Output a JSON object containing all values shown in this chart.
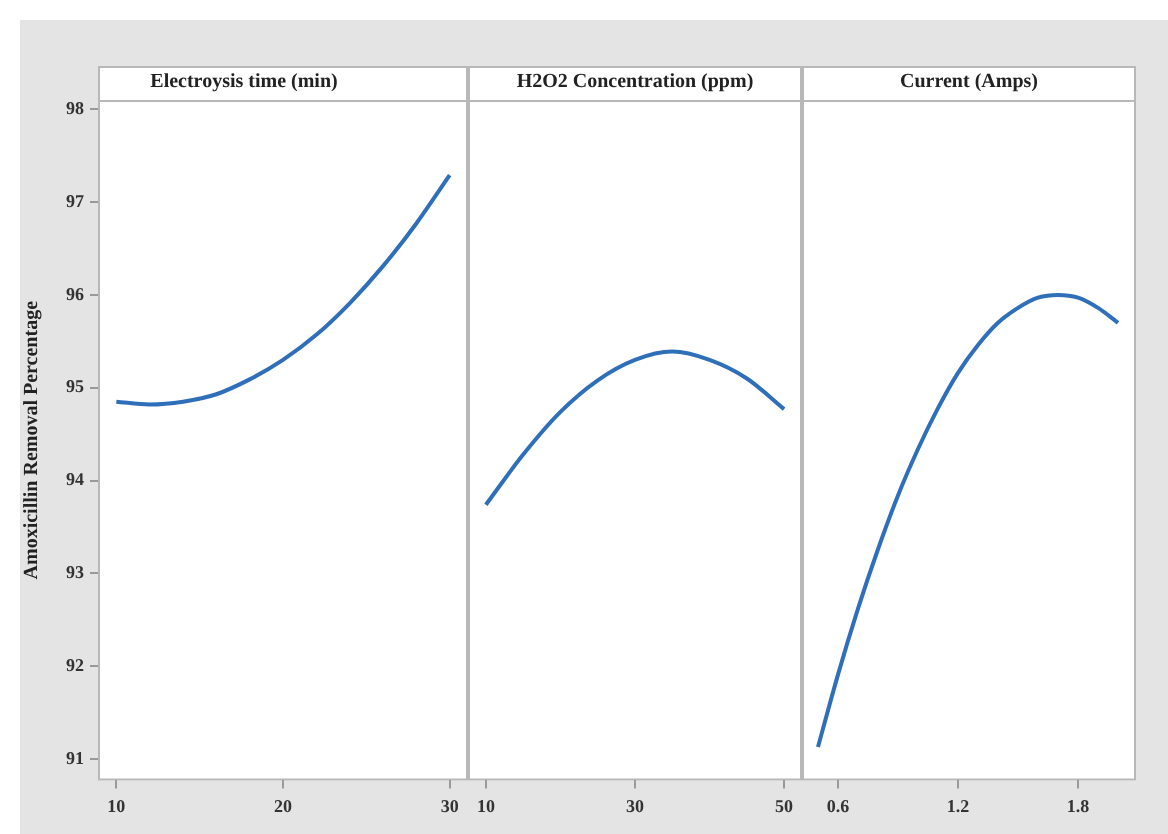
{
  "chart_data": [
    {
      "type": "line",
      "title": "Electroysis time (min)",
      "ylabel": "Amoxicillin Removal Percentage",
      "color": "#2f6fba",
      "x": [
        10,
        12,
        14,
        16,
        18,
        20,
        22,
        24,
        26,
        28,
        30
      ],
      "values": [
        94.85,
        94.82,
        94.85,
        94.93,
        95.09,
        95.3,
        95.57,
        95.91,
        96.31,
        96.77,
        97.29
      ],
      "xlim": [
        8.9,
        31.1
      ],
      "xticks": [
        10,
        20,
        30
      ],
      "ylim": [
        90.77,
        98.1
      ],
      "yticks": [
        91,
        92,
        93,
        94,
        95,
        96,
        97,
        98
      ]
    },
    {
      "type": "line",
      "title": "H2O2 Concentration (ppm)",
      "color": "#2f6fba",
      "x": [
        10,
        15,
        20,
        25,
        30,
        35,
        40,
        45,
        50
      ],
      "values": [
        93.74,
        94.28,
        94.74,
        95.08,
        95.3,
        95.39,
        95.3,
        95.1,
        94.77
      ],
      "xlim": [
        7.6,
        52.4
      ],
      "xticks": [
        10,
        30,
        50
      ],
      "ylim": [
        90.77,
        98.1
      ],
      "yticks": [
        91,
        92,
        93,
        94,
        95,
        96,
        97,
        98
      ],
      "tick_labels": "x"
    },
    {
      "type": "line",
      "title": "Current (Amps)",
      "color": "#2f6fba",
      "x": [
        0.5,
        0.6,
        0.7,
        0.8,
        0.9,
        1.0,
        1.1,
        1.2,
        1.3,
        1.4,
        1.5,
        1.6,
        1.7,
        1.8,
        1.9,
        2.0
      ],
      "values": [
        91.13,
        91.91,
        92.62,
        93.26,
        93.84,
        94.34,
        94.78,
        95.16,
        95.46,
        95.7,
        95.86,
        95.97,
        96.0,
        95.97,
        95.86,
        95.7
      ],
      "xlim": [
        0.42,
        2.09
      ],
      "xticks": [
        0.6,
        1.2,
        1.8
      ],
      "ylim": [
        90.77,
        98.1
      ],
      "yticks": [
        91,
        92,
        93,
        94,
        95,
        96,
        97,
        98
      ],
      "tick_labels": "x"
    }
  ]
}
